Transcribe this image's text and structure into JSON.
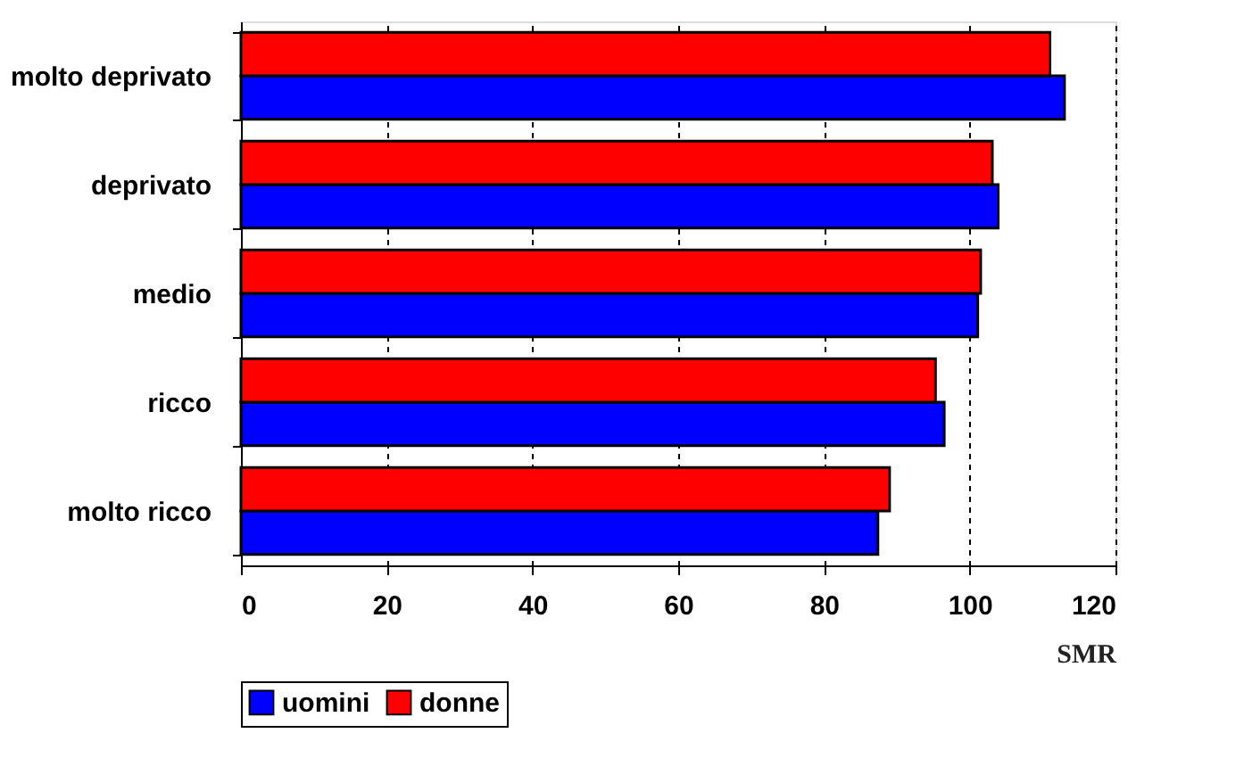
{
  "chart_data": {
    "type": "bar",
    "orientation": "horizontal",
    "categories": [
      "molto deprivato",
      "deprivato",
      "medio",
      "ricco",
      "molto ricco"
    ],
    "series": [
      {
        "name": "uomini",
        "color": "#0000ff",
        "values": [
          113,
          103.9,
          101.1,
          96.5,
          87.4
        ]
      },
      {
        "name": "donne",
        "color": "#ff0000",
        "values": [
          111,
          103.1,
          101.5,
          95.3,
          89.0
        ]
      }
    ],
    "xlim": [
      0,
      120
    ],
    "xticks": [
      0,
      20,
      40,
      60,
      80,
      100,
      120
    ],
    "xlabel": "SMR",
    "grid": "x",
    "legend": "bottom"
  }
}
